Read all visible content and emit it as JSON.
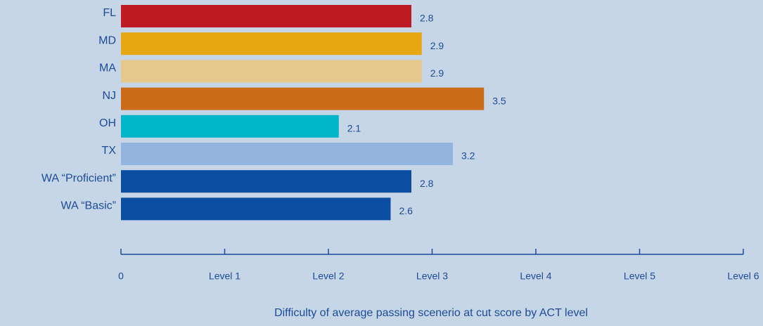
{
  "chart_data": {
    "type": "bar",
    "orientation": "horizontal",
    "x_label": "Difficulty of average passing scenerio at cut score by ACT level",
    "categories": [
      "FL",
      "MD",
      "MA",
      "NJ",
      "OH",
      "TX",
      "WA “Proficient”",
      "WA “Basic”"
    ],
    "values": [
      2.8,
      2.9,
      2.9,
      3.5,
      2.1,
      3.2,
      2.8,
      2.6
    ],
    "colors": [
      "#be1a22",
      "#e6a712",
      "#e6c78c",
      "#cb6a18",
      "#00b5c9",
      "#93b5dd",
      "#0b4ea2",
      "#0b4ea2"
    ],
    "xlim": [
      0,
      6
    ],
    "xticks": [
      0,
      {
        "value": 1,
        "label": "Level 1"
      },
      {
        "value": 2,
        "label": "Level 2"
      },
      {
        "value": 3,
        "label": "Level 3"
      },
      {
        "value": 4,
        "label": "Level 4"
      },
      {
        "value": 5,
        "label": "Level 5"
      },
      {
        "value": 6,
        "label": "Level 6"
      }
    ],
    "grid": false
  }
}
